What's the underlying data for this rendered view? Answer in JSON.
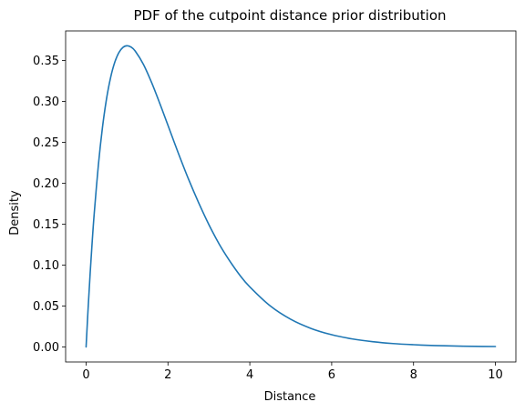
{
  "chart_data": {
    "type": "line",
    "title": "PDF of the cutpoint distance prior distribution",
    "xlabel": "Distance",
    "ylabel": "Density",
    "xlim": [
      -0.5,
      10.5
    ],
    "ylim": [
      -0.0184,
      0.386
    ],
    "xticks": [
      0,
      2,
      4,
      6,
      8,
      10
    ],
    "xtick_labels": [
      "0",
      "2",
      "4",
      "6",
      "8",
      "10"
    ],
    "yticks": [
      0.0,
      0.05,
      0.1,
      0.15,
      0.2,
      0.25,
      0.3,
      0.35
    ],
    "ytick_labels": [
      "0.00",
      "0.05",
      "0.10",
      "0.15",
      "0.20",
      "0.25",
      "0.30",
      "0.35"
    ],
    "grid": false,
    "legend": false,
    "series": [
      {
        "color": "#1f77b4",
        "x": [
          0,
          0.05,
          0.1,
          0.15,
          0.2,
          0.3,
          0.4,
          0.5,
          0.6,
          0.7,
          0.8,
          0.9,
          1.0,
          1.1,
          1.2,
          1.4,
          1.6,
          1.8,
          2.0,
          2.25,
          2.5,
          2.75,
          3.0,
          3.25,
          3.5,
          3.75,
          4.0,
          4.5,
          5.0,
          5.5,
          6.0,
          6.5,
          7.0,
          7.5,
          8.0,
          8.5,
          9.0,
          9.5,
          10.0
        ],
        "y": [
          0.0,
          0.0476,
          0.0905,
          0.1291,
          0.1637,
          0.2222,
          0.2681,
          0.3033,
          0.3293,
          0.3476,
          0.3595,
          0.3659,
          0.3679,
          0.3662,
          0.3614,
          0.3452,
          0.323,
          0.2975,
          0.2707,
          0.2371,
          0.2052,
          0.1761,
          0.1494,
          0.1258,
          0.1057,
          0.088,
          0.0733,
          0.05,
          0.0337,
          0.0225,
          0.0149,
          0.0098,
          0.0064,
          0.0041,
          0.0027,
          0.0017,
          0.0011,
          0.0007,
          0.0005
        ]
      }
    ]
  }
}
